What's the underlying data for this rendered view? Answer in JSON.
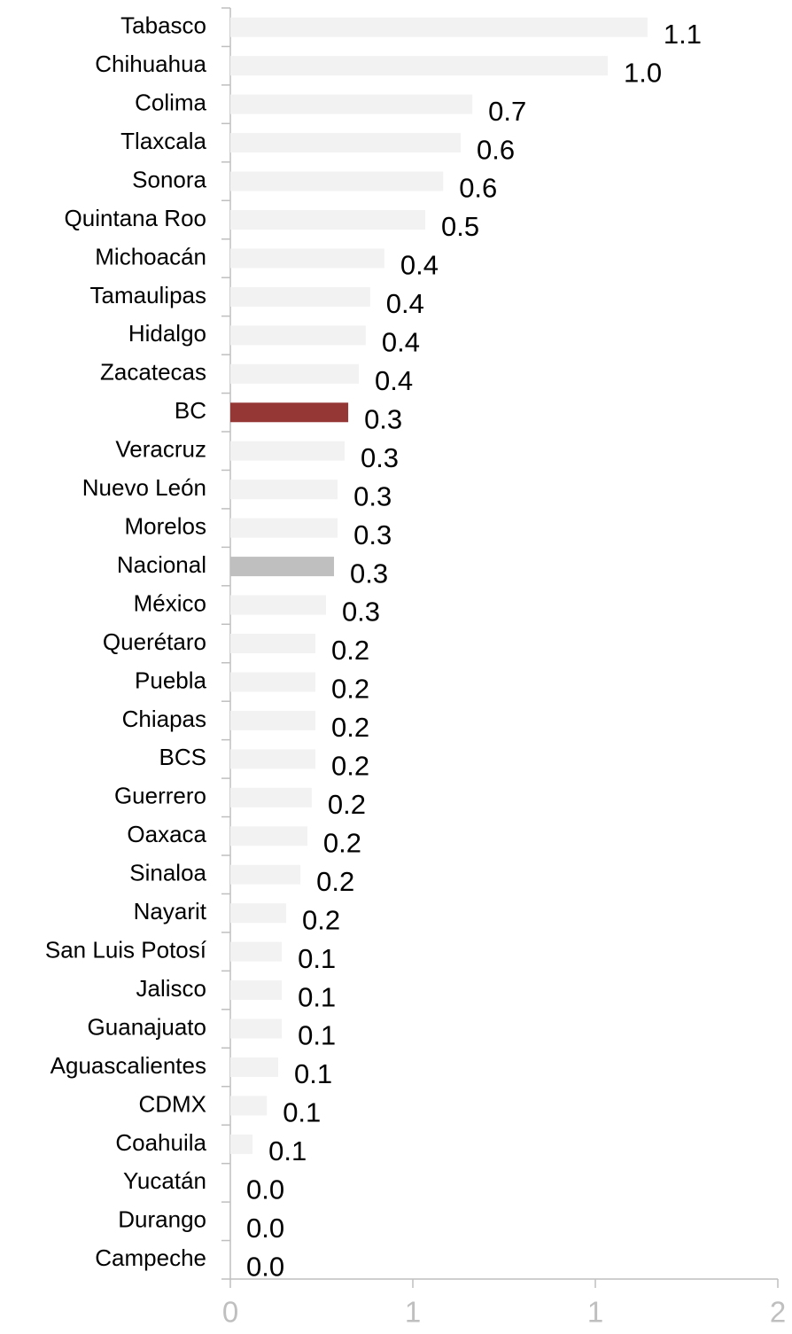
{
  "chart_data": {
    "type": "barh",
    "categories": [
      "Tabasco",
      "Chihuahua",
      "Colima",
      "Tlaxcala",
      "Sonora",
      "Quintana Roo",
      "Michoacán",
      "Tamaulipas",
      "Hidalgo",
      "Zacatecas",
      "BC",
      "Veracruz",
      "Nuevo León",
      "Morelos",
      "Nacional",
      "México",
      "Querétaro",
      "Puebla",
      "Chiapas",
      "BCS",
      "Guerrero",
      "Oaxaca",
      "Sinaloa",
      "Nayarit",
      "San Luis Potosí",
      "Jalisco",
      "Guanajuato",
      "Aguascalientes",
      "CDMX",
      "Coahuila",
      "Yucatán",
      "Durango",
      "Campeche"
    ],
    "values": [
      1.143,
      1.034,
      0.663,
      0.631,
      0.583,
      0.534,
      0.422,
      0.383,
      0.371,
      0.352,
      0.323,
      0.313,
      0.294,
      0.294,
      0.284,
      0.262,
      0.233,
      0.233,
      0.233,
      0.233,
      0.223,
      0.211,
      0.192,
      0.153,
      0.141,
      0.141,
      0.141,
      0.131,
      0.1,
      0.061,
      0,
      0,
      0
    ],
    "value_labels": [
      "1.1",
      "1.0",
      "0.7",
      "0.6",
      "0.6",
      "0.5",
      "0.4",
      "0.4",
      "0.4",
      "0.4",
      "0.3",
      "0.3",
      "0.3",
      "0.3",
      "0.3",
      "0.3",
      "0.2",
      "0.2",
      "0.2",
      "0.2",
      "0.2",
      "0.2",
      "0.2",
      "0.2",
      "0.1",
      "0.1",
      "0.1",
      "0.1",
      "0.1",
      "0.1",
      "0.0",
      "0.0",
      "0.0"
    ],
    "colors": [
      "#f2f2f2",
      "#f2f2f2",
      "#f2f2f2",
      "#f2f2f2",
      "#f2f2f2",
      "#f2f2f2",
      "#f2f2f2",
      "#f2f2f2",
      "#f2f2f2",
      "#f2f2f2",
      "#953735",
      "#f2f2f2",
      "#f2f2f2",
      "#f2f2f2",
      "#bfbfbf",
      "#f2f2f2",
      "#f2f2f2",
      "#f2f2f2",
      "#f2f2f2",
      "#f2f2f2",
      "#f2f2f2",
      "#f2f2f2",
      "#f2f2f2",
      "#f2f2f2",
      "#f2f2f2",
      "#f2f2f2",
      "#f2f2f2",
      "#f2f2f2",
      "#f2f2f2",
      "#f2f2f2",
      "#f2f2f2",
      "#f2f2f2",
      "#f2f2f2"
    ],
    "xlim": [
      0,
      1.5
    ],
    "xticks": [
      0,
      {
        "value": 0.5,
        "label": "1"
      },
      {
        "value": 1,
        "label": "1"
      },
      {
        "value": 1.5,
        "label": "2"
      }
    ]
  }
}
